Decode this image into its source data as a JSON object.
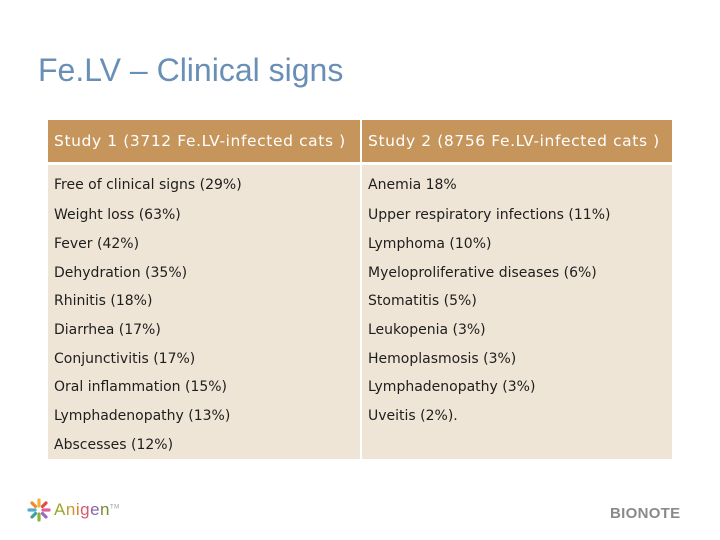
{
  "slide": {
    "title": "Fe.LV – Clinical signs"
  },
  "table": {
    "headers": [
      "Study 1 (3712 Fe.LV-infected cats )",
      "Study 2 (8756 Fe.LV-infected cats )"
    ],
    "rows": [
      [
        "Free of clinical signs (29%)",
        "Anemia 18%"
      ],
      [
        "Weight loss (63%)",
        "Upper respiratory infections (11%)"
      ],
      [
        "Fever (42%)",
        "Lymphoma (10%)"
      ],
      [
        "Dehydration (35%)",
        "Myeloproliferative diseases (6%)"
      ],
      [
        "Rhinitis (18%)",
        "Stomatitis (5%)"
      ],
      [
        "Diarrhea (17%)",
        "Leukopenia (3%)"
      ],
      [
        "Conjunctivitis (17%)",
        "Hemoplasmosis (3%)"
      ],
      [
        "Oral inflammation (15%)",
        "Lymphadenopathy (3%)"
      ],
      [
        "Lymphadenopathy (13%)",
        "Uveitis (2%)."
      ],
      [
        "Abscesses (12%)",
        ""
      ]
    ]
  },
  "footer": {
    "left_logo": {
      "text": "Anigen",
      "letters": [
        "A",
        "n",
        "i",
        "g",
        "e",
        "n"
      ],
      "letter_colors": [
        "#9aa52a",
        "#c69a2a",
        "#e07a2a",
        "#d65a6a",
        "#8b63b0",
        "#7a8c2a"
      ],
      "trademark": "TM",
      "icon": "anigen-sparkle-icon"
    },
    "right_logo": {
      "text": "BIONOTE"
    }
  },
  "colors": {
    "title": "#6a8fb6",
    "header_bg": "#c5955b",
    "cell_bg": "#efe5d6"
  }
}
